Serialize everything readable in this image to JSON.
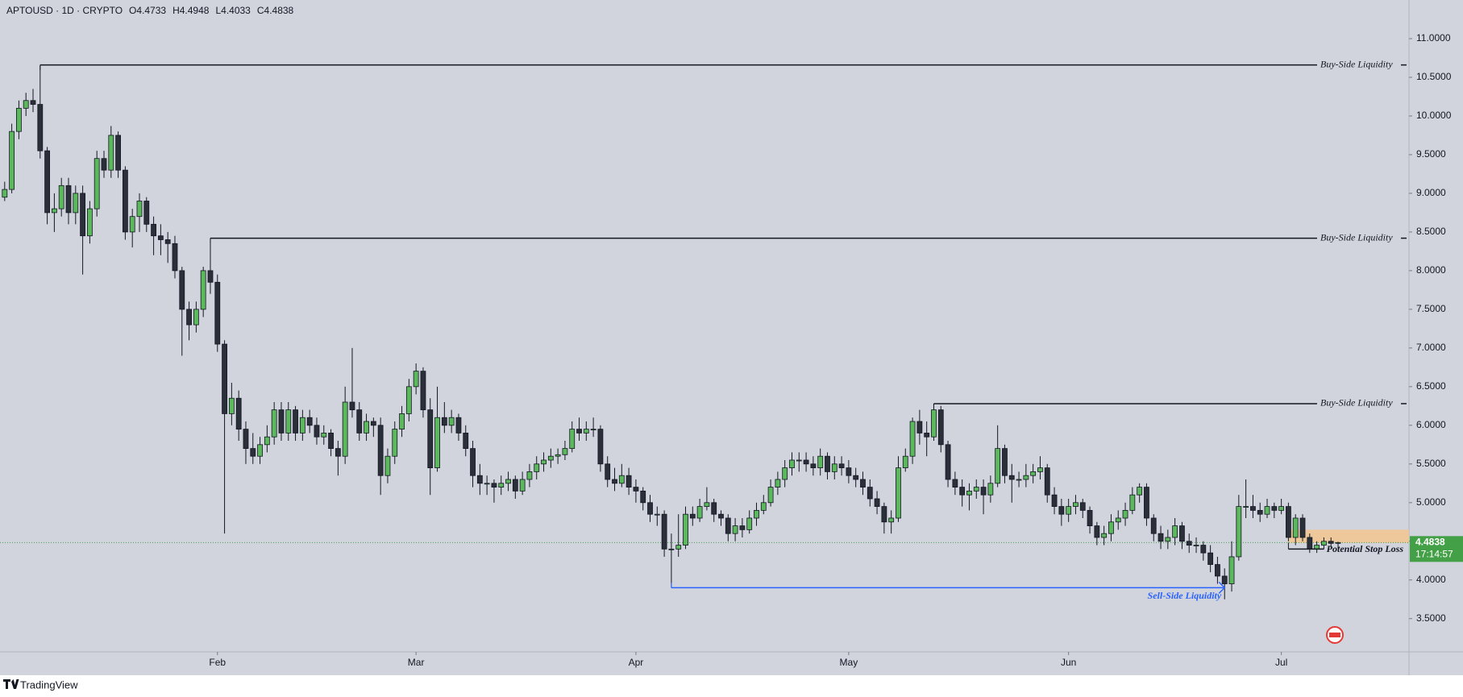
{
  "chart_data": {
    "type": "candlestick",
    "header": {
      "symbol": "APTOUSD · 1D · CRYPTO",
      "fields": [
        {
          "label": "O",
          "value": 4.4733
        },
        {
          "label": "H",
          "value": 4.4948
        },
        {
          "label": "L",
          "value": 4.4033
        },
        {
          "label": "C",
          "value": 4.4838
        }
      ]
    },
    "up_color": "#5cb85c",
    "down_color": "#2b2f3a",
    "xlim": [
      -0.66,
      198
    ],
    "ylim": [
      3.07,
      11.5
    ],
    "xticks": [
      {
        "value": 30,
        "label": "Feb"
      },
      {
        "value": 58,
        "label": "Mar"
      },
      {
        "value": 89,
        "label": "Apr"
      },
      {
        "value": 119,
        "label": "May"
      },
      {
        "value": 150,
        "label": "Jun"
      },
      {
        "value": 180,
        "label": "Jul"
      }
    ],
    "yticks": [
      {
        "value": 3.5,
        "label": "3.5000"
      },
      {
        "value": 4,
        "label": "4.0000"
      },
      {
        "value": 4.5,
        "label": "4.5000"
      },
      {
        "value": 5,
        "label": "5.0000"
      },
      {
        "value": 5.5,
        "label": "5.5000"
      },
      {
        "value": 6,
        "label": "6.0000"
      },
      {
        "value": 6.5,
        "label": "6.5000"
      },
      {
        "value": 7,
        "label": "7.0000"
      },
      {
        "value": 7.5,
        "label": "7.5000"
      },
      {
        "value": 8,
        "label": "8.0000"
      },
      {
        "value": 8.5,
        "label": "8.5000"
      },
      {
        "value": 9,
        "label": "9.0000"
      },
      {
        "value": 9.5,
        "label": "9.5000"
      },
      {
        "value": 10,
        "label": "10.0000"
      },
      {
        "value": 10.5,
        "label": "10.5000"
      },
      {
        "value": 11,
        "label": "11.0000"
      }
    ],
    "candles": [
      [
        8.95,
        9.15,
        8.9,
        9.05
      ],
      [
        9.05,
        9.9,
        9.0,
        9.8
      ],
      [
        9.8,
        10.2,
        9.7,
        10.1
      ],
      [
        10.1,
        10.3,
        10.0,
        10.2
      ],
      [
        10.2,
        10.35,
        10.05,
        10.15
      ],
      [
        10.15,
        10.65,
        9.45,
        9.55
      ],
      [
        9.55,
        9.6,
        8.6,
        8.75
      ],
      [
        8.75,
        9.0,
        8.5,
        8.8
      ],
      [
        8.8,
        9.2,
        8.7,
        9.1
      ],
      [
        9.1,
        9.2,
        8.6,
        8.75
      ],
      [
        8.75,
        9.1,
        8.6,
        9.0
      ],
      [
        9.0,
        9.1,
        7.95,
        8.45
      ],
      [
        8.45,
        8.9,
        8.35,
        8.8
      ],
      [
        8.8,
        9.55,
        8.7,
        9.45
      ],
      [
        9.45,
        9.55,
        9.2,
        9.3
      ],
      [
        9.3,
        9.87,
        9.2,
        9.75
      ],
      [
        9.75,
        9.8,
        9.2,
        9.3
      ],
      [
        9.3,
        9.35,
        8.4,
        8.5
      ],
      [
        8.5,
        8.8,
        8.3,
        8.7
      ],
      [
        8.7,
        9.0,
        8.5,
        8.9
      ],
      [
        8.9,
        8.95,
        8.5,
        8.6
      ],
      [
        8.6,
        8.7,
        8.2,
        8.45
      ],
      [
        8.45,
        8.6,
        8.2,
        8.4
      ],
      [
        8.4,
        8.5,
        8.1,
        8.35
      ],
      [
        8.35,
        8.45,
        7.9,
        8.0
      ],
      [
        8.0,
        8.05,
        6.9,
        7.5
      ],
      [
        7.5,
        7.6,
        7.1,
        7.3
      ],
      [
        7.3,
        7.6,
        7.2,
        7.5
      ],
      [
        7.5,
        8.05,
        7.4,
        8.0
      ],
      [
        8.0,
        8.42,
        7.7,
        7.85
      ],
      [
        7.85,
        7.95,
        6.95,
        7.05
      ],
      [
        7.05,
        7.1,
        4.6,
        6.15
      ],
      [
        6.15,
        6.55,
        6.0,
        6.35
      ],
      [
        6.35,
        6.45,
        5.8,
        5.95
      ],
      [
        5.95,
        6.05,
        5.5,
        5.7
      ],
      [
        5.7,
        5.9,
        5.5,
        5.6
      ],
      [
        5.6,
        5.85,
        5.5,
        5.75
      ],
      [
        5.75,
        6.0,
        5.65,
        5.85
      ],
      [
        5.85,
        6.3,
        5.75,
        6.2
      ],
      [
        6.2,
        6.3,
        5.8,
        5.9
      ],
      [
        5.9,
        6.3,
        5.8,
        6.2
      ],
      [
        6.2,
        6.25,
        5.8,
        5.9
      ],
      [
        5.9,
        6.2,
        5.8,
        6.1
      ],
      [
        6.1,
        6.2,
        5.9,
        6.0
      ],
      [
        6.0,
        6.1,
        5.75,
        5.85
      ],
      [
        5.85,
        6.0,
        5.75,
        5.9
      ],
      [
        5.9,
        5.95,
        5.6,
        5.7
      ],
      [
        5.7,
        5.8,
        5.35,
        5.6
      ],
      [
        5.6,
        6.5,
        5.5,
        6.3
      ],
      [
        6.3,
        7.0,
        6.1,
        6.2
      ],
      [
        6.2,
        6.3,
        5.8,
        5.9
      ],
      [
        5.9,
        6.15,
        5.8,
        6.05
      ],
      [
        6.05,
        6.1,
        5.85,
        6.0
      ],
      [
        6.0,
        6.1,
        5.1,
        5.35
      ],
      [
        5.35,
        5.7,
        5.25,
        5.6
      ],
      [
        5.6,
        6.05,
        5.5,
        5.95
      ],
      [
        5.95,
        6.25,
        5.85,
        6.15
      ],
      [
        6.15,
        6.6,
        6.05,
        6.5
      ],
      [
        6.5,
        6.8,
        6.4,
        6.7
      ],
      [
        6.7,
        6.75,
        6.1,
        6.2
      ],
      [
        6.2,
        6.35,
        5.1,
        5.45
      ],
      [
        5.45,
        6.5,
        5.4,
        6.1
      ],
      [
        6.1,
        6.3,
        5.9,
        6.0
      ],
      [
        6.0,
        6.2,
        5.9,
        6.1
      ],
      [
        6.1,
        6.15,
        5.8,
        5.9
      ],
      [
        5.9,
        6.0,
        5.6,
        5.7
      ],
      [
        5.7,
        5.8,
        5.2,
        5.35
      ],
      [
        5.35,
        5.5,
        5.1,
        5.25
      ],
      [
        5.25,
        5.35,
        5.1,
        5.25
      ],
      [
        5.25,
        5.3,
        5.0,
        5.2
      ],
      [
        5.2,
        5.35,
        5.1,
        5.25
      ],
      [
        5.25,
        5.4,
        5.15,
        5.3
      ],
      [
        5.3,
        5.35,
        5.05,
        5.15
      ],
      [
        5.15,
        5.4,
        5.1,
        5.3
      ],
      [
        5.3,
        5.5,
        5.2,
        5.4
      ],
      [
        5.4,
        5.6,
        5.3,
        5.5
      ],
      [
        5.5,
        5.65,
        5.4,
        5.55
      ],
      [
        5.55,
        5.7,
        5.45,
        5.6
      ],
      [
        5.6,
        5.7,
        5.5,
        5.62
      ],
      [
        5.62,
        5.8,
        5.55,
        5.7
      ],
      [
        5.7,
        6.05,
        5.65,
        5.95
      ],
      [
        5.95,
        6.1,
        5.8,
        5.9
      ],
      [
        5.9,
        6.05,
        5.8,
        5.95
      ],
      [
        5.95,
        6.1,
        5.85,
        5.95
      ],
      [
        5.95,
        6.0,
        5.4,
        5.5
      ],
      [
        5.5,
        5.6,
        5.2,
        5.3
      ],
      [
        5.3,
        5.45,
        5.15,
        5.25
      ],
      [
        5.25,
        5.5,
        5.2,
        5.35
      ],
      [
        5.35,
        5.45,
        5.1,
        5.2
      ],
      [
        5.2,
        5.3,
        5.0,
        5.15
      ],
      [
        5.15,
        5.2,
        4.9,
        5.0
      ],
      [
        5.0,
        5.1,
        4.75,
        4.85
      ],
      [
        4.85,
        4.95,
        4.7,
        4.85
      ],
      [
        4.85,
        4.9,
        4.3,
        4.4
      ],
      [
        4.4,
        4.6,
        3.9,
        4.4
      ],
      [
        4.4,
        4.85,
        4.3,
        4.45
      ],
      [
        4.45,
        4.95,
        4.4,
        4.85
      ],
      [
        4.85,
        4.95,
        4.7,
        4.8
      ],
      [
        4.8,
        5.05,
        4.75,
        4.95
      ],
      [
        4.95,
        5.2,
        4.9,
        5.0
      ],
      [
        5.0,
        5.05,
        4.75,
        4.85
      ],
      [
        4.85,
        4.9,
        4.7,
        4.8
      ],
      [
        4.8,
        4.85,
        4.5,
        4.6
      ],
      [
        4.6,
        4.8,
        4.5,
        4.7
      ],
      [
        4.7,
        4.8,
        4.55,
        4.65
      ],
      [
        4.65,
        4.9,
        4.6,
        4.8
      ],
      [
        4.8,
        5.0,
        4.7,
        4.9
      ],
      [
        4.9,
        5.1,
        4.85,
        5.0
      ],
      [
        5.0,
        5.3,
        4.95,
        5.2
      ],
      [
        5.2,
        5.4,
        5.1,
        5.3
      ],
      [
        5.3,
        5.55,
        5.2,
        5.45
      ],
      [
        5.45,
        5.65,
        5.35,
        5.55
      ],
      [
        5.55,
        5.65,
        5.4,
        5.55
      ],
      [
        5.55,
        5.65,
        5.4,
        5.5
      ],
      [
        5.5,
        5.6,
        5.35,
        5.45
      ],
      [
        5.45,
        5.7,
        5.35,
        5.6
      ],
      [
        5.6,
        5.65,
        5.3,
        5.4
      ],
      [
        5.4,
        5.6,
        5.3,
        5.5
      ],
      [
        5.5,
        5.6,
        5.35,
        5.45
      ],
      [
        5.45,
        5.55,
        5.25,
        5.35
      ],
      [
        5.35,
        5.45,
        5.2,
        5.3
      ],
      [
        5.3,
        5.4,
        5.1,
        5.2
      ],
      [
        5.2,
        5.3,
        4.95,
        5.05
      ],
      [
        5.05,
        5.15,
        4.85,
        4.95
      ],
      [
        4.95,
        5.0,
        4.6,
        4.75
      ],
      [
        4.75,
        4.9,
        4.6,
        4.8
      ],
      [
        4.8,
        5.6,
        4.75,
        5.45
      ],
      [
        5.45,
        5.7,
        5.4,
        5.6
      ],
      [
        5.6,
        6.1,
        5.5,
        6.05
      ],
      [
        6.05,
        6.2,
        5.75,
        5.9
      ],
      [
        5.9,
        6.05,
        5.6,
        5.85
      ],
      [
        5.85,
        6.28,
        5.8,
        6.2
      ],
      [
        6.2,
        6.25,
        5.65,
        5.75
      ],
      [
        5.75,
        5.8,
        5.2,
        5.3
      ],
      [
        5.3,
        5.4,
        5.1,
        5.2
      ],
      [
        5.2,
        5.3,
        4.95,
        5.1
      ],
      [
        5.1,
        5.25,
        4.9,
        5.15
      ],
      [
        5.15,
        5.3,
        5.05,
        5.2
      ],
      [
        5.2,
        5.3,
        4.85,
        5.1
      ],
      [
        5.1,
        5.35,
        5.0,
        5.25
      ],
      [
        5.25,
        6.0,
        5.2,
        5.7
      ],
      [
        5.7,
        5.75,
        5.25,
        5.35
      ],
      [
        5.35,
        5.5,
        5.0,
        5.3
      ],
      [
        5.3,
        5.4,
        5.2,
        5.3
      ],
      [
        5.3,
        5.5,
        5.2,
        5.35
      ],
      [
        5.35,
        5.5,
        5.25,
        5.4
      ],
      [
        5.4,
        5.6,
        5.3,
        5.45
      ],
      [
        5.45,
        5.5,
        5.0,
        5.1
      ],
      [
        5.1,
        5.2,
        4.85,
        4.95
      ],
      [
        4.95,
        5.05,
        4.7,
        4.85
      ],
      [
        4.85,
        5.05,
        4.75,
        4.95
      ],
      [
        4.95,
        5.1,
        4.85,
        5.0
      ],
      [
        5.0,
        5.05,
        4.8,
        4.9
      ],
      [
        4.9,
        4.95,
        4.6,
        4.7
      ],
      [
        4.7,
        4.75,
        4.45,
        4.55
      ],
      [
        4.55,
        4.7,
        4.45,
        4.6
      ],
      [
        4.6,
        4.85,
        4.5,
        4.75
      ],
      [
        4.75,
        4.9,
        4.65,
        4.8
      ],
      [
        4.8,
        5.0,
        4.7,
        4.9
      ],
      [
        4.9,
        5.2,
        4.85,
        5.1
      ],
      [
        5.1,
        5.25,
        5.0,
        5.2
      ],
      [
        5.2,
        5.25,
        4.7,
        4.8
      ],
      [
        4.8,
        4.85,
        4.5,
        4.6
      ],
      [
        4.6,
        4.7,
        4.4,
        4.5
      ],
      [
        4.5,
        4.65,
        4.4,
        4.55
      ],
      [
        4.55,
        4.8,
        4.45,
        4.7
      ],
      [
        4.7,
        4.75,
        4.4,
        4.5
      ],
      [
        4.5,
        4.6,
        4.35,
        4.45
      ],
      [
        4.45,
        4.55,
        4.35,
        4.45
      ],
      [
        4.45,
        4.5,
        4.25,
        4.35
      ],
      [
        4.35,
        4.45,
        4.1,
        4.2
      ],
      [
        4.2,
        4.3,
        3.95,
        4.05
      ],
      [
        4.05,
        4.15,
        3.75,
        3.95
      ],
      [
        3.95,
        4.5,
        3.85,
        4.3
      ],
      [
        4.3,
        5.1,
        4.25,
        4.95
      ],
      [
        4.95,
        5.3,
        4.8,
        4.95
      ],
      [
        4.95,
        5.1,
        4.8,
        4.9
      ],
      [
        4.9,
        5.0,
        4.75,
        4.85
      ],
      [
        4.85,
        5.05,
        4.8,
        4.95
      ],
      [
        4.95,
        5.0,
        4.8,
        4.9
      ],
      [
        4.9,
        5.05,
        4.85,
        4.95
      ],
      [
        4.95,
        5.0,
        4.5,
        4.55
      ],
      [
        4.55,
        4.85,
        4.45,
        4.8
      ],
      [
        4.8,
        4.85,
        4.5,
        4.55
      ],
      [
        4.55,
        4.6,
        4.35,
        4.4
      ],
      [
        4.4,
        4.5,
        4.35,
        4.45
      ],
      [
        4.45,
        4.55,
        4.4,
        4.5
      ],
      [
        4.5,
        4.55,
        4.42,
        4.4733
      ],
      [
        4.4733,
        4.4948,
        4.4033,
        4.4838
      ]
    ],
    "levels": [
      {
        "text": "Buy-Side Liquidity",
        "value": 10.66,
        "start": 5
      },
      {
        "text": "Buy-Side Liquidity",
        "value": 8.42,
        "start": 29
      },
      {
        "text": "Buy-Side Liquidity",
        "value": 6.28,
        "start": 131
      }
    ],
    "sell_side": {
      "text": "Sell-Side Liquidity",
      "value": 3.9,
      "start": 94,
      "end": 172,
      "color": "#2962ff"
    },
    "stop_loss": {
      "text": "Potential Stop Loss",
      "value": 4.4,
      "start": 181,
      "end": 186
    },
    "zone": {
      "top": 4.65,
      "bottom": 4.48,
      "start": 181,
      "color": "#f3c58e"
    },
    "last_price": {
      "value": 4.4838,
      "label": "4.4838",
      "countdown": "17:14:57",
      "color": "#43a047"
    },
    "footer": "TradingView"
  }
}
